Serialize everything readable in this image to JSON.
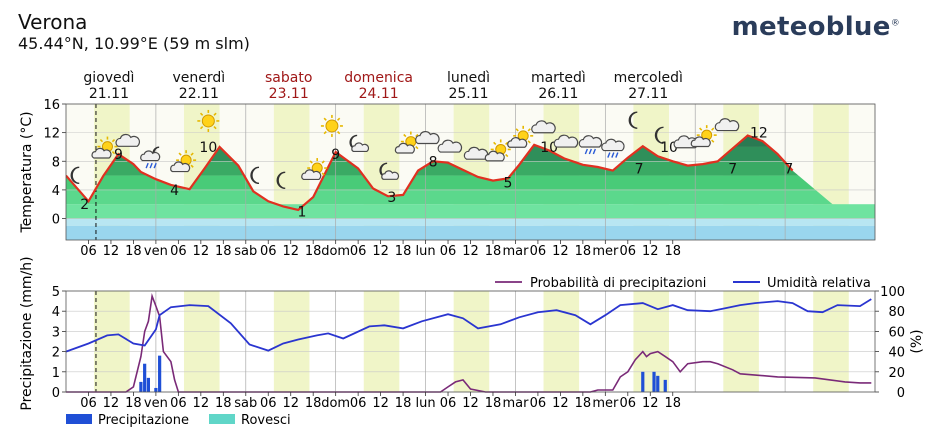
{
  "header": {
    "location": "Verona",
    "coords": "45.44°N, 10.99°E (59 m slm)",
    "brand": "meteoblue",
    "brand_mark": "®"
  },
  "days": [
    {
      "name": "giovedì",
      "date": "21.11",
      "weekend": false
    },
    {
      "name": "venerdì",
      "date": "22.11",
      "weekend": false
    },
    {
      "name": "sabato",
      "date": "23.11",
      "weekend": true
    },
    {
      "name": "domenica",
      "date": "24.11",
      "weekend": true
    },
    {
      "name": "lunedì",
      "date": "25.11",
      "weekend": false
    },
    {
      "name": "martedì",
      "date": "26.11",
      "weekend": false
    },
    {
      "name": "mercoledì",
      "date": "27.11",
      "weekend": false
    }
  ],
  "colors": {
    "weekend_text": "#a01818",
    "temp_line": "#e03020",
    "precip_bar": "#1f4fd6",
    "showers_bar": "#60d6c8",
    "probability_line": "#7a2a78",
    "humidity_line": "#2a35d0",
    "daylight_band": "#f0f5c8"
  },
  "x_axis": {
    "tick_labels": [
      "06",
      "12",
      "18",
      "ven",
      "06",
      "12",
      "18",
      "sab",
      "06",
      "12",
      "18",
      "dom",
      "06",
      "12",
      "18",
      "lun",
      "06",
      "12",
      "18",
      "mar",
      "06",
      "12",
      "18",
      "mer",
      "06",
      "12",
      "18"
    ]
  },
  "chart_data": [
    {
      "type": "area",
      "ylabel": "Temperatura (°C)",
      "ylim": [
        -3,
        16
      ],
      "yticks": [
        0,
        4,
        8,
        12,
        16
      ],
      "grid": true,
      "x_unit": "hours since 21.11 00:00",
      "series": [
        {
          "x": [
            0,
            6,
            10,
            14,
            18,
            20,
            24,
            28,
            33,
            37,
            41,
            46,
            50,
            54,
            58,
            62,
            66,
            72,
            78,
            82,
            86,
            90,
            94,
            98,
            102,
            106,
            110,
            114,
            118,
            121,
            125,
            129,
            133,
            138,
            142,
            146,
            150,
            154,
            158,
            162,
            166,
            170,
            174,
            178,
            182,
            186,
            190,
            194,
            198,
            202,
            206,
            210,
            215
          ],
          "values": [
            6,
            2.4,
            6,
            9,
            7.6,
            6.5,
            5.5,
            4.7,
            4.1,
            7,
            10,
            7.4,
            3.8,
            2.4,
            1.7,
            1.2,
            3,
            9.3,
            7,
            4.2,
            3.1,
            3.3,
            6.7,
            8,
            7.8,
            6.8,
            5.8,
            5.3,
            5.6,
            7.5,
            10.3,
            9.5,
            8.4,
            7.5,
            7.2,
            6.7,
            8.5,
            10.1,
            8.7,
            8,
            7.4,
            7.6,
            8,
            9.8,
            11.6,
            10.8,
            9,
            6.7,
            null,
            null,
            null,
            null,
            null
          ]
        }
      ],
      "labels": [
        {
          "x": 5,
          "value": 2,
          "text": "2"
        },
        {
          "x": 14,
          "value": 9,
          "text": "9"
        },
        {
          "x": 29,
          "value": 4,
          "text": "4"
        },
        {
          "x": 38,
          "value": 10,
          "text": "10"
        },
        {
          "x": 63,
          "value": 1,
          "text": "1"
        },
        {
          "x": 72,
          "value": 9,
          "text": "9"
        },
        {
          "x": 87,
          "value": 3,
          "text": "3"
        },
        {
          "x": 98,
          "value": 8,
          "text": "8"
        },
        {
          "x": 118,
          "value": 5,
          "text": "5"
        },
        {
          "x": 129,
          "value": 10,
          "text": "10"
        },
        {
          "x": 153,
          "value": 7,
          "text": "7"
        },
        {
          "x": 161,
          "value": 10,
          "text": "10"
        },
        {
          "x": 178,
          "value": 7,
          "text": "7"
        },
        {
          "x": 185,
          "value": 12,
          "text": "12"
        },
        {
          "x": 193,
          "value": 7,
          "text": "7"
        }
      ],
      "weather_icons": [
        {
          "x": 3,
          "icon": "moon-icon"
        },
        {
          "x": 10,
          "icon": "sun-behind-cloud-icon"
        },
        {
          "x": 17,
          "icon": "cloud-icon"
        },
        {
          "x": 23,
          "icon": "cloud-rain-night-icon"
        },
        {
          "x": 31,
          "icon": "sun-behind-cloud-icon"
        },
        {
          "x": 38,
          "icon": "sun-icon"
        },
        {
          "x": 51,
          "icon": "moon-icon"
        },
        {
          "x": 58,
          "icon": "moon-icon"
        },
        {
          "x": 66,
          "icon": "sun-behind-cloud-icon"
        },
        {
          "x": 71,
          "icon": "sun-icon"
        },
        {
          "x": 78,
          "icon": "moon-cloud-icon"
        },
        {
          "x": 86,
          "icon": "moon-cloud-icon"
        },
        {
          "x": 91,
          "icon": "sun-behind-cloud-icon"
        },
        {
          "x": 97,
          "icon": "cloud-icon"
        },
        {
          "x": 103,
          "icon": "cloud-icon"
        },
        {
          "x": 110,
          "icon": "cloud-icon"
        },
        {
          "x": 115,
          "icon": "sun-behind-cloud-icon"
        },
        {
          "x": 121,
          "icon": "sun-behind-cloud-icon"
        },
        {
          "x": 128,
          "icon": "cloud-icon"
        },
        {
          "x": 134,
          "icon": "cloud-icon"
        },
        {
          "x": 140,
          "icon": "cloud-rain-icon"
        },
        {
          "x": 146,
          "icon": "cloud-rain-icon"
        },
        {
          "x": 152,
          "icon": "moon-icon"
        },
        {
          "x": 159,
          "icon": "moon-icon"
        },
        {
          "x": 166,
          "icon": "cloud-icon"
        },
        {
          "x": 170,
          "icon": "sun-behind-cloud-icon"
        },
        {
          "x": 177,
          "icon": "cloud-icon"
        }
      ]
    },
    {
      "type": "bar",
      "ylabel": "Precipitazione (mm/h)",
      "y2label": "(%)",
      "ylim": [
        0,
        5
      ],
      "y2lim": [
        0,
        100
      ],
      "yticks": [
        0,
        1,
        2,
        3,
        4,
        5
      ],
      "y2ticks": [
        0,
        20,
        40,
        60,
        80,
        100
      ],
      "grid": true,
      "x_unit": "hours since 21.11 00:00",
      "legend_top": [
        "Probabilità di precipitazioni",
        "Umidità relativa"
      ],
      "legend_bottom": [
        "Precipitazione",
        "Rovesci"
      ],
      "precipitazione": {
        "x": [
          20,
          21,
          22,
          24,
          25,
          154,
          157,
          158,
          160
        ],
        "values": [
          0.5,
          1.4,
          0.7,
          0.2,
          1.8,
          1.0,
          1.0,
          0.8,
          0.6
        ]
      },
      "rovesci": {
        "x": [],
        "values": []
      },
      "probabilita": {
        "x": [
          0,
          16,
          18,
          20,
          21,
          22,
          23,
          24,
          25,
          26,
          28,
          29,
          30,
          32,
          100,
          102,
          104,
          106,
          108,
          112,
          114,
          116,
          138,
          140,
          142,
          146,
          148,
          150,
          152,
          154,
          155,
          156,
          158,
          160,
          162,
          164,
          166,
          170,
          172,
          174,
          178,
          180,
          190,
          200,
          204,
          208,
          212,
          215
        ],
        "values": [
          0,
          0,
          5,
          35,
          60,
          70,
          95,
          85,
          75,
          40,
          30,
          12,
          0,
          0,
          0,
          5,
          10,
          12,
          3,
          0,
          0,
          0,
          0,
          0,
          2,
          2,
          15,
          20,
          32,
          40,
          35,
          38,
          40,
          35,
          30,
          20,
          28,
          30,
          30,
          28,
          22,
          18,
          15,
          14,
          12,
          10,
          9,
          9
        ]
      },
      "umidita": {
        "x": [
          0,
          6,
          11,
          14,
          18,
          21,
          24,
          25,
          28,
          33,
          38,
          44,
          49,
          54,
          58,
          62,
          67,
          70,
          74,
          81,
          85,
          90,
          95,
          102,
          106,
          110,
          116,
          121,
          126,
          131,
          136,
          140,
          144,
          148,
          154,
          158,
          162,
          166,
          172,
          176,
          180,
          184,
          190,
          194,
          198,
          202,
          206,
          212,
          215
        ],
        "values": [
          40,
          48,
          56,
          57,
          48,
          46,
          62,
          76,
          84,
          86,
          85,
          68,
          47,
          41,
          48,
          52,
          56,
          58,
          53,
          65,
          66,
          63,
          70,
          77,
          73,
          63,
          67,
          74,
          79,
          81,
          76,
          67,
          76,
          86,
          88,
          82,
          86,
          81,
          80,
          83,
          86,
          88,
          90,
          88,
          80,
          79,
          86,
          85,
          92
        ]
      }
    }
  ]
}
